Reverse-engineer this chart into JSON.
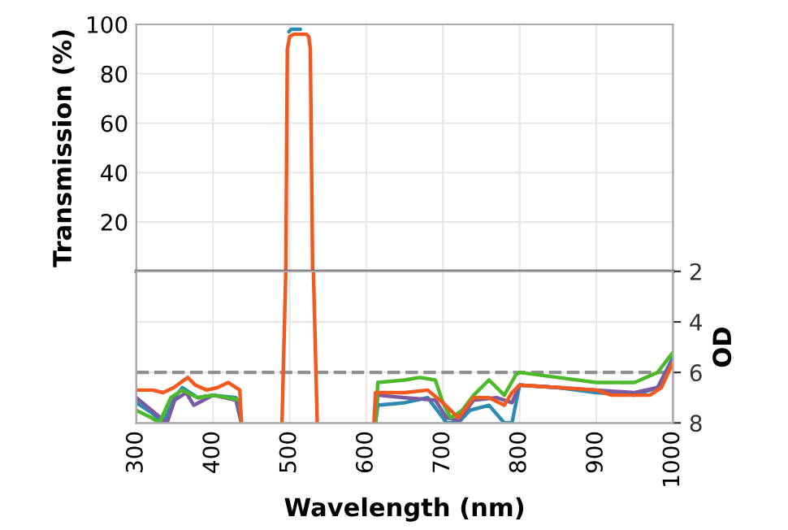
{
  "chart_data": [
    {
      "type": "line",
      "ylabel": "Transmission (%)",
      "xlim": [
        300,
        1000
      ],
      "xticks": [
        {
          "value": 300,
          "label": null
        },
        {
          "value": 400,
          "label": null
        },
        {
          "value": 500,
          "label": null
        },
        {
          "value": 600,
          "label": null
        },
        {
          "value": 700,
          "label": null
        },
        {
          "value": 800,
          "label": null
        },
        {
          "value": 900,
          "label": null
        },
        {
          "value": 1000,
          "label": null
        }
      ],
      "ylim": [
        0,
        100
      ],
      "yticks": [
        20,
        40,
        60,
        80,
        100
      ],
      "grid": true,
      "tick_labels": "y",
      "series": [
        {
          "color": "#2e8bb0",
          "x": [
            499,
            502,
            508,
            514
          ],
          "values": [
            97,
            98,
            98,
            98
          ]
        },
        {
          "color": "#f05a1e",
          "x": [
            495,
            497,
            500,
            505,
            515,
            522,
            525,
            527,
            530
          ],
          "values": [
            0,
            90,
            95,
            96,
            96,
            96,
            95,
            90,
            0
          ]
        }
      ]
    },
    {
      "type": "line",
      "xlabel": "Wavelength (nm)",
      "y2label": "OD",
      "xlim": [
        300,
        1000
      ],
      "xticks": [
        300,
        400,
        500,
        600,
        700,
        800,
        900,
        1000
      ],
      "y2lim": [
        8,
        2
      ],
      "y2ticks": [
        2,
        4,
        6,
        8
      ],
      "grid": true,
      "ref_lines": [
        {
          "axis": "y2",
          "value": 6,
          "color": "#909090",
          "line_style": "dashed"
        }
      ],
      "series": [
        {
          "color": "#2e8bb0",
          "axis": "y2",
          "x": [
            300,
            320,
            335,
            350,
            360,
            380,
            400,
            430,
            437,
            460,
            612,
            615,
            650,
            680,
            695,
            705,
            720,
            735,
            760,
            780,
            790,
            800,
            850,
            900,
            950,
            980,
            1000
          ],
          "values": [
            7.2,
            7.6,
            8,
            7.0,
            6.6,
            7.0,
            6.9,
            7.0,
            8,
            null,
            8,
            7.3,
            7.2,
            7.0,
            7.6,
            8,
            8,
            7.5,
            7.3,
            8,
            8,
            6.5,
            6.6,
            6.8,
            6.9,
            6.6,
            5.4
          ]
        },
        {
          "color": "#7a5aa0",
          "axis": "y2",
          "x": [
            300,
            320,
            340,
            350,
            365,
            375,
            400,
            430,
            437,
            460,
            612,
            615,
            650,
            690,
            705,
            720,
            740,
            770,
            790,
            800,
            850,
            900,
            950,
            980,
            1000
          ],
          "values": [
            7.0,
            7.5,
            8,
            7.1,
            6.8,
            7.3,
            6.9,
            7.1,
            8,
            null,
            8,
            6.9,
            7.0,
            7.1,
            7.8,
            7.9,
            7.1,
            7.0,
            7.2,
            6.5,
            6.6,
            6.7,
            6.8,
            6.6,
            5.5
          ]
        },
        {
          "color": "#4cb82a",
          "axis": "y2",
          "x": [
            300,
            320,
            330,
            345,
            360,
            380,
            400,
            420,
            435,
            437,
            460,
            612,
            615,
            650,
            670,
            690,
            700,
            710,
            725,
            740,
            760,
            780,
            795,
            800,
            850,
            900,
            950,
            980,
            1000
          ],
          "values": [
            7.5,
            7.8,
            8,
            7.0,
            6.7,
            7.0,
            6.9,
            7.0,
            7.1,
            8,
            null,
            8,
            6.4,
            6.3,
            6.2,
            6.3,
            7.2,
            7.8,
            7.5,
            6.9,
            6.3,
            6.9,
            6.1,
            6.0,
            6.2,
            6.4,
            6.4,
            6.0,
            5.2
          ]
        },
        {
          "color": "#f05a1e",
          "axis": "y2",
          "x": [
            300,
            321,
            335,
            349,
            367,
            377,
            392,
            406,
            420,
            435,
            437,
            460,
            490,
            495,
            513,
            531,
            536,
            570,
            610,
            612,
            650,
            680,
            700,
            720,
            740,
            760,
            780,
            790,
            800,
            850,
            900,
            920,
            950,
            970,
            985,
            1000
          ],
          "values": [
            6.7,
            6.7,
            6.8,
            6.6,
            6.2,
            6.5,
            6.7,
            6.6,
            6.4,
            6.7,
            8,
            null,
            8,
            2,
            null,
            2,
            8,
            null,
            8,
            6.8,
            6.8,
            6.7,
            7.2,
            7.8,
            7.0,
            7.0,
            7.3,
            6.8,
            6.5,
            6.6,
            6.7,
            6.9,
            6.9,
            6.9,
            6.6,
            5.6
          ]
        }
      ]
    }
  ]
}
